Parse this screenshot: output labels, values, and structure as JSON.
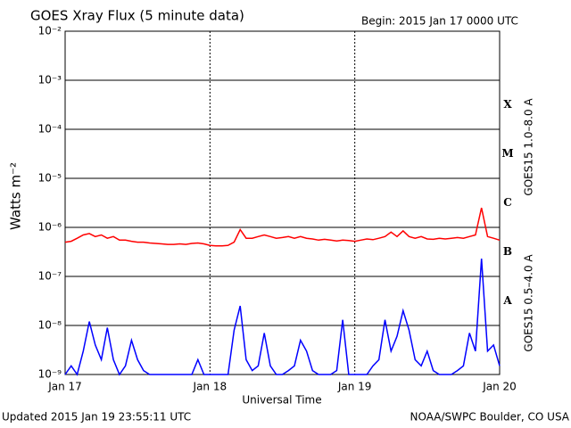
{
  "chart_data": {
    "type": "line",
    "title": "GOES Xray Flux (5 minute data)",
    "subtitle": "Begin:  2015 Jan 17 0000 UTC",
    "y_label": "Watts m⁻²",
    "x_label": "Universal Time",
    "footer_left": "Updated 2015 Jan 19 23:55:11 UTC",
    "footer_right": "NOAA/SWPC Boulder, CO USA",
    "log_scale_y": true,
    "grid": true,
    "class_labels": [
      "X",
      "M",
      "C",
      "B",
      "A"
    ],
    "xlim": [
      0,
      72
    ],
    "xticks": [
      {
        "value": 0,
        "label": "Jan 17"
      },
      {
        "value": 24,
        "label": "Jan 18"
      },
      {
        "value": 48,
        "label": "Jan 19"
      },
      {
        "value": 72,
        "label": "Jan 20"
      }
    ],
    "ylim": [
      1e-09,
      0.01
    ],
    "yticks": [
      {
        "value": 0.01,
        "label": "10⁻²"
      },
      {
        "value": 0.001,
        "label": "10⁻³"
      },
      {
        "value": 0.0001,
        "label": "10⁻⁴"
      },
      {
        "value": 1e-05,
        "label": "10⁻⁵"
      },
      {
        "value": 1e-06,
        "label": "10⁻⁶"
      },
      {
        "value": 1e-07,
        "label": "10⁻⁷"
      },
      {
        "value": 1e-08,
        "label": "10⁻⁸"
      },
      {
        "value": 1e-09,
        "label": "10⁻⁹"
      }
    ],
    "x": [
      0,
      1,
      2,
      3,
      4,
      5,
      6,
      7,
      8,
      9,
      10,
      11,
      12,
      13,
      14,
      15,
      16,
      17,
      18,
      19,
      20,
      21,
      22,
      23,
      24,
      25,
      26,
      27,
      28,
      29,
      30,
      31,
      32,
      33,
      34,
      35,
      36,
      37,
      38,
      39,
      40,
      41,
      42,
      43,
      44,
      45,
      46,
      47,
      48,
      49,
      50,
      51,
      52,
      53,
      54,
      55,
      56,
      57,
      58,
      59,
      60,
      61,
      62,
      63,
      64,
      65,
      66,
      67,
      68,
      69,
      70,
      71,
      72
    ],
    "series": [
      {
        "name": "GOES15 1.0–8.0 A",
        "color": "#ff0000",
        "values": [
          5e-07,
          5.2e-07,
          6e-07,
          7e-07,
          7.5e-07,
          6.5e-07,
          7e-07,
          6e-07,
          6.5e-07,
          5.5e-07,
          5.5e-07,
          5.2e-07,
          5e-07,
          5e-07,
          4.8e-07,
          4.7e-07,
          4.6e-07,
          4.5e-07,
          4.5e-07,
          4.6e-07,
          4.5e-07,
          4.7e-07,
          4.8e-07,
          4.6e-07,
          4.3e-07,
          4.2e-07,
          4.2e-07,
          4.3e-07,
          5e-07,
          9e-07,
          6e-07,
          6e-07,
          6.5e-07,
          7e-07,
          6.5e-07,
          6e-07,
          6.2e-07,
          6.5e-07,
          6e-07,
          6.5e-07,
          6e-07,
          5.8e-07,
          5.5e-07,
          5.7e-07,
          5.5e-07,
          5.3e-07,
          5.5e-07,
          5.4e-07,
          5.2e-07,
          5.5e-07,
          5.8e-07,
          5.6e-07,
          6e-07,
          6.5e-07,
          8e-07,
          6.5e-07,
          8.5e-07,
          6.5e-07,
          6e-07,
          6.5e-07,
          5.8e-07,
          5.7e-07,
          6e-07,
          5.8e-07,
          6e-07,
          6.2e-07,
          6e-07,
          6.5e-07,
          7e-07,
          2.5e-06,
          6.5e-07,
          6e-07,
          5.5e-07
        ]
      },
      {
        "name": "GOES15 0.5–4.0 A",
        "color": "#0000ff",
        "values": [
          1e-09,
          1.5e-09,
          1e-09,
          3e-09,
          1.2e-08,
          4e-09,
          2e-09,
          9e-09,
          2e-09,
          1e-09,
          1.5e-09,
          5e-09,
          2e-09,
          1.2e-09,
          1e-09,
          1e-09,
          1e-09,
          1e-09,
          1e-09,
          1e-09,
          1e-09,
          1e-09,
          2e-09,
          1e-09,
          1e-09,
          1e-09,
          1e-09,
          1e-09,
          8e-09,
          2.5e-08,
          2e-09,
          1.2e-09,
          1.5e-09,
          7e-09,
          1.5e-09,
          1e-09,
          1e-09,
          1.2e-09,
          1.5e-09,
          5e-09,
          3e-09,
          1.2e-09,
          1e-09,
          1e-09,
          1e-09,
          1.2e-09,
          1.3e-08,
          1e-09,
          1e-09,
          1e-09,
          1e-09,
          1.5e-09,
          2e-09,
          1.3e-08,
          3e-09,
          6e-09,
          2e-08,
          8e-09,
          2e-09,
          1.5e-09,
          3e-09,
          1.2e-09,
          1e-09,
          1e-09,
          1e-09,
          1.2e-09,
          1.5e-09,
          7e-09,
          3e-09,
          2.3e-07,
          3e-09,
          4e-09,
          1.5e-09
        ]
      }
    ]
  }
}
